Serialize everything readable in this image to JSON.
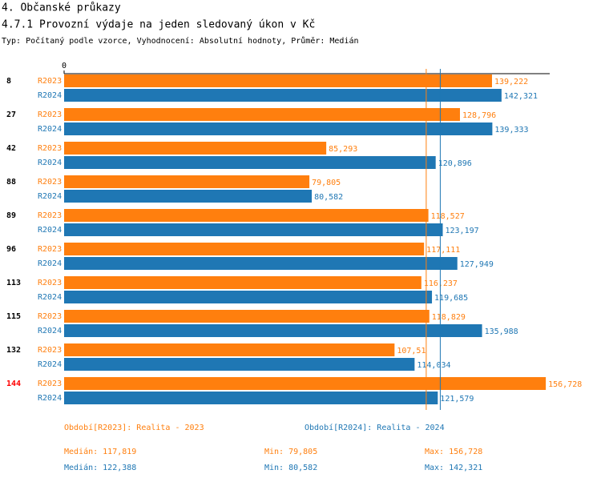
{
  "header": {
    "section": "4. Občanské průkazy",
    "title": "4.7.1 Provozní výdaje na jeden sledovaný úkon v Kč",
    "subtitle": "Typ: Počítaný podle vzorce, Vyhodnocení: Absolutní hodnoty, Průměr: Medián"
  },
  "chart_data": {
    "type": "hbar",
    "categories": [
      "8",
      "27",
      "42",
      "88",
      "89",
      "96",
      "113",
      "115",
      "132",
      "144"
    ],
    "category_colors": [
      "#000000",
      "#000000",
      "#000000",
      "#000000",
      "#000000",
      "#000000",
      "#000000",
      "#000000",
      "#000000",
      "#ff0000"
    ],
    "xlim": [
      0,
      158
    ],
    "xticks": [
      0
    ],
    "stat_names": [
      "Medián:",
      "Min:",
      "Max:"
    ],
    "series": [
      {
        "name": "R2023",
        "legend": "Období[R2023]: Realita - 2023",
        "color": "#ff7f0e",
        "values": [
          139.222,
          128.796,
          85.293,
          79.805,
          118.527,
          117.111,
          116.237,
          118.829,
          107.51,
          156.728
        ],
        "value_labels": [
          "139,222",
          "128,796",
          "85,293",
          "79,805",
          "118,527",
          "117,111",
          "116,237",
          "118,829",
          "107,51",
          "156,728"
        ],
        "median": 117.819,
        "median_label": "117,819",
        "min_label": "79,805",
        "max_label": "156,728"
      },
      {
        "name": "R2024",
        "legend": "Období[R2024]: Realita - 2024",
        "color": "#1f77b4",
        "values": [
          142.321,
          139.333,
          120.896,
          80.582,
          123.197,
          127.949,
          119.685,
          135.988,
          114.034,
          121.579
        ],
        "value_labels": [
          "142,321",
          "139,333",
          "120,896",
          "80,582",
          "123,197",
          "127,949",
          "119,685",
          "135,988",
          "114,034",
          "121,579"
        ],
        "median": 122.388,
        "median_label": "122,388",
        "min_label": "80,582",
        "max_label": "142,321"
      }
    ]
  }
}
